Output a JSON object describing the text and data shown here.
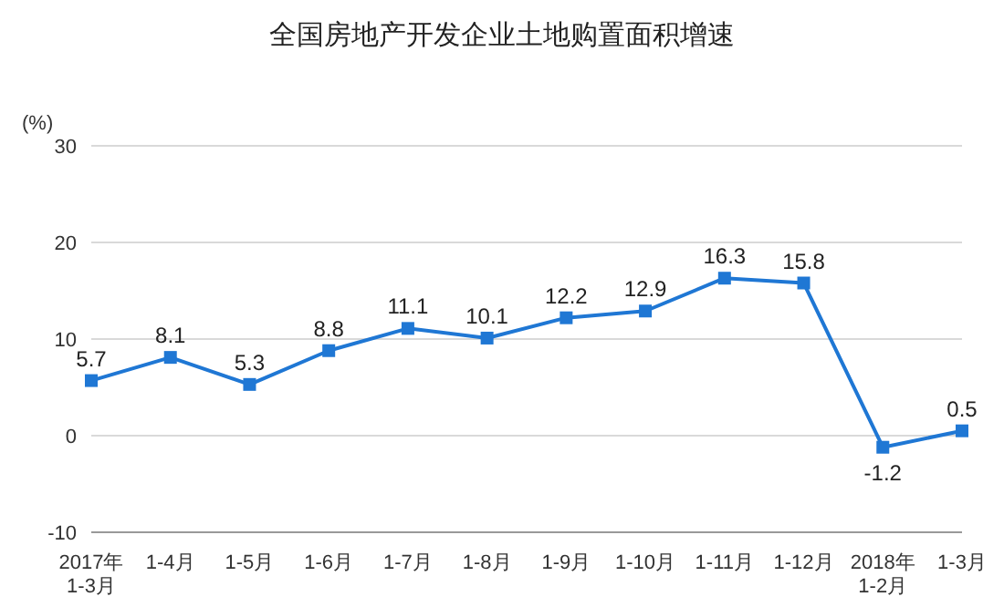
{
  "chart_data": {
    "type": "line",
    "title": "全国房地产开发企业土地购置面积增速",
    "ylabel": "(%)",
    "categories": [
      "2017年\n1-3月",
      "1-4月",
      "1-5月",
      "1-6月",
      "1-7月",
      "1-8月",
      "1-9月",
      "1-10月",
      "1-11月",
      "1-12月",
      "2018年\n1-2月",
      "1-3月"
    ],
    "series": [
      {
        "color": "#1f77d4",
        "values": [
          5.7,
          8.1,
          5.3,
          8.8,
          11.1,
          10.1,
          12.2,
          12.9,
          16.3,
          15.8,
          -1.2,
          0.5
        ]
      }
    ],
    "ylim": [
      -10,
      30
    ],
    "yticks": [
      -10,
      0,
      10,
      20,
      30
    ],
    "grid": "y",
    "marker": "square",
    "data_labels": true
  }
}
